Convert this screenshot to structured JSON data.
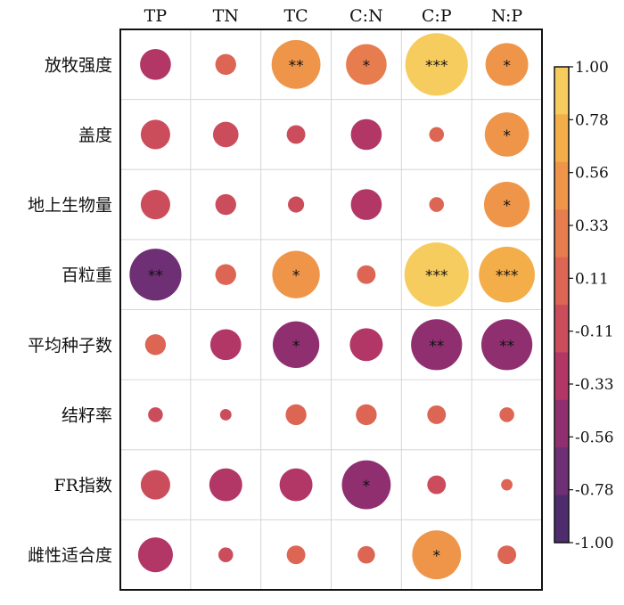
{
  "chart_data": {
    "type": "heatmap",
    "columns": [
      "TP",
      "TN",
      "TC",
      "C:N",
      "C:P",
      "N:P"
    ],
    "rows": [
      "放牧强度",
      "盖度",
      "地上生物量",
      "百粒重",
      "平均种子数",
      "结籽率",
      "FR指数",
      "雌性适合度"
    ],
    "values": [
      [
        -0.22,
        0.1,
        0.55,
        0.38,
        0.9,
        0.42
      ],
      [
        -0.2,
        -0.15,
        -0.08,
        -0.22,
        0.05,
        0.45
      ],
      [
        -0.2,
        -0.1,
        -0.06,
        -0.22,
        0.05,
        0.48
      ],
      [
        -0.62,
        0.1,
        0.52,
        0.08,
        0.95,
        0.72
      ],
      [
        0.1,
        -0.22,
        -0.5,
        -0.25,
        -0.6,
        -0.6
      ],
      [
        -0.05,
        -0.03,
        0.1,
        0.1,
        0.08,
        0.05
      ],
      [
        -0.2,
        -0.25,
        -0.25,
        -0.55,
        -0.08,
        0.03
      ],
      [
        -0.28,
        -0.05,
        0.08,
        0.07,
        0.55,
        0.08
      ]
    ],
    "significance": [
      [
        "",
        "",
        "**",
        "*",
        "***",
        "*"
      ],
      [
        "",
        "",
        "",
        "",
        "",
        "*"
      ],
      [
        "",
        "",
        "",
        "",
        "",
        "*"
      ],
      [
        "**",
        "",
        "*",
        "",
        "***",
        "***"
      ],
      [
        "",
        "",
        "*",
        "",
        "**",
        "**"
      ],
      [
        "",
        "",
        "",
        "",
        "",
        ""
      ],
      [
        "",
        "",
        "",
        "*",
        "",
        ""
      ],
      [
        "",
        "",
        "",
        "",
        "*",
        ""
      ]
    ],
    "colorbar": {
      "ticks": [
        "1.00",
        "0.78",
        "0.56",
        "0.33",
        "0.11",
        "-0.11",
        "-0.33",
        "-0.56",
        "-0.78",
        "-1.00"
      ],
      "range": [
        -1,
        1
      ],
      "colors": [
        "#4f2c6e",
        "#6e2f74",
        "#8f2f70",
        "#b23766",
        "#cb4d5c",
        "#dc6553",
        "#e77d4f",
        "#ee9549",
        "#f3ae4a",
        "#f7cc5e"
      ]
    },
    "grid": true
  }
}
